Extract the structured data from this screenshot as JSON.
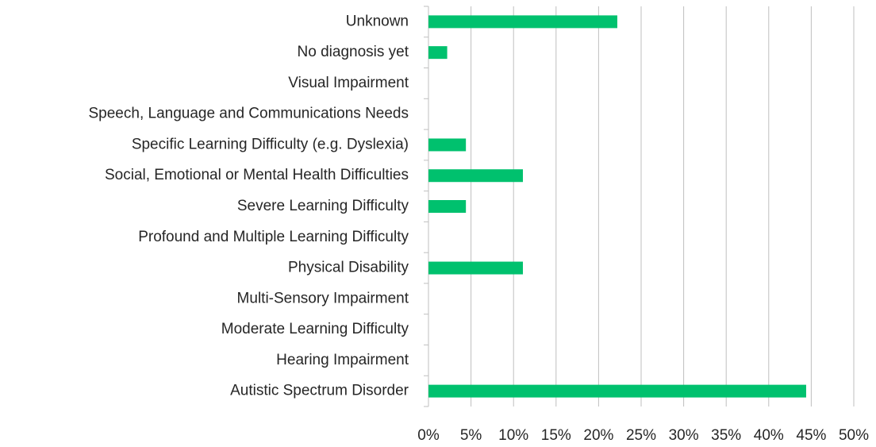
{
  "chart_data": {
    "type": "bar",
    "orientation": "horizontal",
    "categories": [
      "Unknown",
      "No diagnosis yet",
      "Visual Impairment",
      "Speech, Language and Communications Needs",
      "Specific Learning Difficulty (e.g. Dyslexia)",
      "Social, Emotional or Mental Health Difficulties",
      "Severe Learning Difficulty",
      "Profound and Multiple Learning Difficulty",
      "Physical Disability",
      "Multi-Sensory Impairment",
      "Moderate Learning Difficulty",
      "Hearing Impairment",
      "Autistic Spectrum Disorder"
    ],
    "values": [
      22.2,
      2.2,
      0,
      0,
      4.4,
      11.1,
      4.4,
      0,
      11.1,
      0,
      0,
      0,
      44.4
    ],
    "color": "#00c16e",
    "xlim": [
      0,
      50
    ],
    "xticks": [
      {
        "value": 0,
        "label": "0%"
      },
      {
        "value": 5,
        "label": "5%"
      },
      {
        "value": 10,
        "label": "10%"
      },
      {
        "value": 15,
        "label": "15%"
      },
      {
        "value": 20,
        "label": "20%"
      },
      {
        "value": 25,
        "label": "25%"
      },
      {
        "value": 30,
        "label": "30%"
      },
      {
        "value": 35,
        "label": "35%"
      },
      {
        "value": 40,
        "label": "40%"
      },
      {
        "value": 45,
        "label": "45%"
      },
      {
        "value": 50,
        "label": "50%"
      }
    ],
    "grid": true
  }
}
